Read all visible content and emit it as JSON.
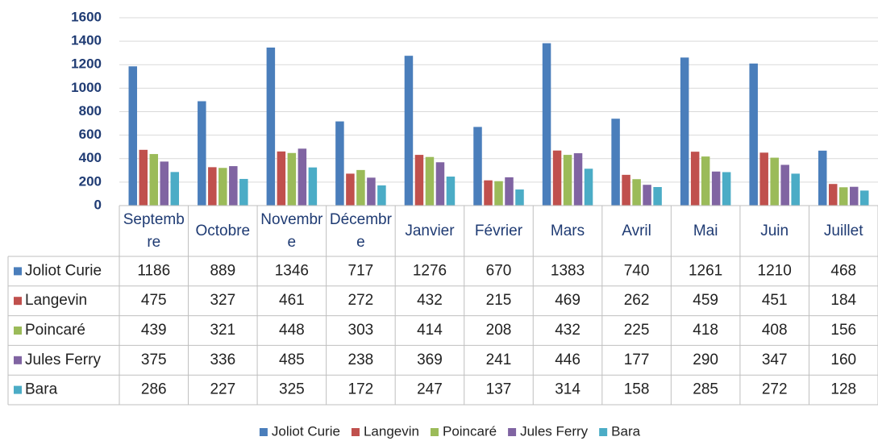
{
  "chart_data": {
    "type": "bar",
    "categories": [
      "Septembre",
      "Octobre",
      "Novembre",
      "Décembre",
      "Janvier",
      "Février",
      "Mars",
      "Avril",
      "Mai",
      "Juin",
      "Juillet"
    ],
    "series": [
      {
        "name": "Joliot Curie",
        "color": "#4a7ebb",
        "values": [
          1186,
          889,
          1346,
          717,
          1276,
          670,
          1383,
          740,
          1261,
          1210,
          468
        ]
      },
      {
        "name": "Langevin",
        "color": "#c0504d",
        "values": [
          475,
          327,
          461,
          272,
          432,
          215,
          469,
          262,
          459,
          451,
          184
        ]
      },
      {
        "name": "Poincaré",
        "color": "#9bbb59",
        "values": [
          439,
          321,
          448,
          303,
          414,
          208,
          432,
          225,
          418,
          408,
          156
        ]
      },
      {
        "name": "Jules Ferry",
        "color": "#8064a2",
        "values": [
          375,
          336,
          485,
          238,
          369,
          241,
          446,
          177,
          290,
          347,
          160
        ]
      },
      {
        "name": "Bara",
        "color": "#4bacc6",
        "values": [
          286,
          227,
          325,
          172,
          247,
          137,
          314,
          158,
          285,
          272,
          128
        ]
      }
    ],
    "ylim": [
      0,
      1600
    ],
    "yticks": [
      0,
      200,
      400,
      600,
      800,
      1000,
      1200,
      1400,
      1600
    ],
    "grid": true,
    "legend": "bottom"
  }
}
